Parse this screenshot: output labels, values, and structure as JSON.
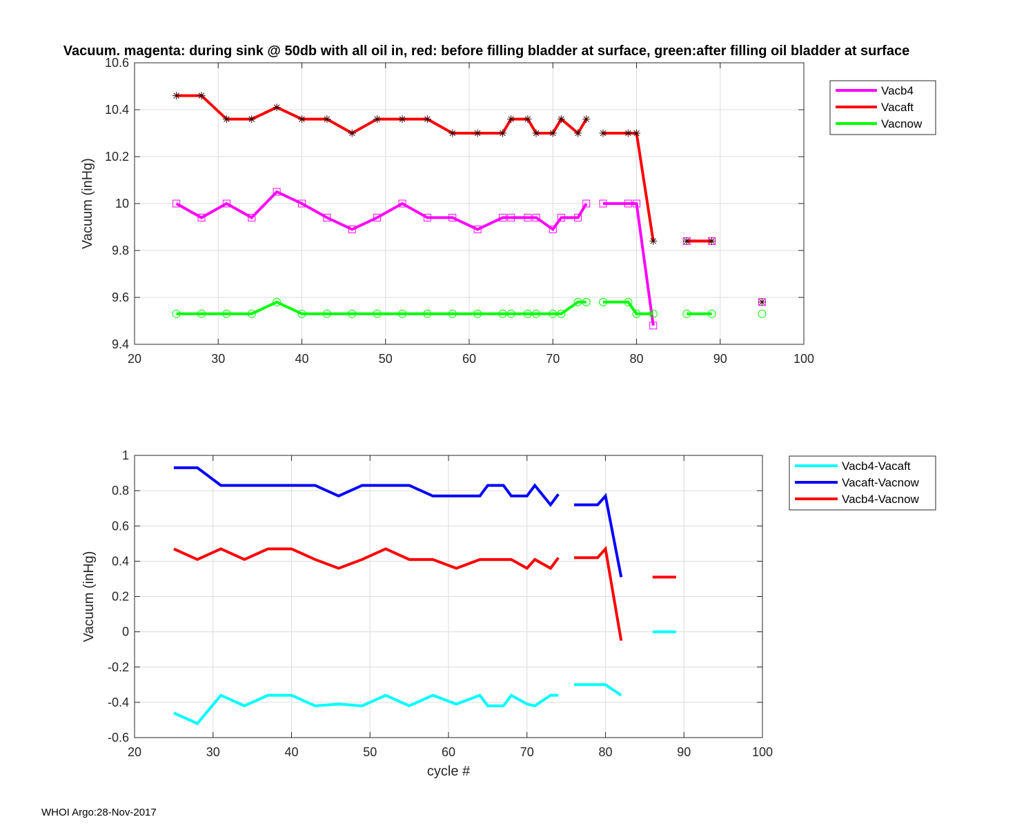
{
  "colors": {
    "magenta": "#ff00ff",
    "red": "#ff0000",
    "green": "#00ff00",
    "cyan": "#00ffff",
    "blue": "#0000ff",
    "grid": "#dcdcdc",
    "axis": "#262626"
  },
  "footer": "WHOI Argo:28-Nov-2017",
  "chart_data": [
    {
      "type": "line",
      "title": "Vacuum. magenta: during sink @ 50db with all oil in, red: before filling bladder at surface, green:after filling oil bladder at surface",
      "xlabel": "",
      "ylabel": "Vacuum (inHg)",
      "xlim": [
        20,
        100
      ],
      "ylim": [
        9.4,
        10.6
      ],
      "xticks": [
        20,
        30,
        40,
        50,
        60,
        70,
        80,
        90,
        100
      ],
      "xtick_labels": [
        "20",
        "30",
        "40",
        "50",
        "60",
        "70",
        "80",
        "90",
        "100"
      ],
      "yticks": [
        9.4,
        9.6,
        9.8,
        10.0,
        10.2,
        10.4,
        10.6
      ],
      "ytick_labels": [
        "9.4",
        "9.6",
        "9.8",
        "10",
        "10.2",
        "10.4",
        "10.6"
      ],
      "grid": true,
      "legend": "top-right outside",
      "series": [
        {
          "name": "Vacb4",
          "color": "#ff00ff",
          "marker": "square",
          "x": [
            25,
            28,
            31,
            34,
            37,
            40,
            43,
            46,
            49,
            52,
            55,
            58,
            61,
            64,
            65,
            67,
            68,
            70,
            71,
            73,
            74,
            null,
            76,
            79,
            80,
            82,
            null,
            86,
            89,
            null,
            95
          ],
          "y": [
            10.0,
            9.94,
            10.0,
            9.94,
            10.05,
            10.0,
            9.94,
            9.89,
            9.94,
            10.0,
            9.94,
            9.94,
            9.89,
            9.94,
            9.94,
            9.94,
            9.94,
            9.89,
            9.94,
            9.94,
            10.0,
            null,
            10.0,
            10.0,
            10.0,
            9.48,
            null,
            9.84,
            9.84,
            null,
            9.58
          ]
        },
        {
          "name": "Vacaft",
          "color": "#ff0000",
          "marker": "asterisk",
          "x": [
            25,
            28,
            31,
            34,
            37,
            40,
            43,
            46,
            49,
            52,
            55,
            58,
            61,
            64,
            65,
            67,
            68,
            70,
            71,
            73,
            74,
            null,
            76,
            79,
            80,
            82,
            null,
            86,
            89,
            null,
            95
          ],
          "y": [
            10.46,
            10.46,
            10.36,
            10.36,
            10.41,
            10.36,
            10.36,
            10.3,
            10.36,
            10.36,
            10.36,
            10.3,
            10.3,
            10.3,
            10.36,
            10.36,
            10.3,
            10.3,
            10.36,
            10.3,
            10.36,
            null,
            10.3,
            10.3,
            10.3,
            9.84,
            null,
            9.84,
            9.84,
            null,
            9.58
          ]
        },
        {
          "name": "Vacnow",
          "color": "#00ff00",
          "marker": "circle",
          "x": [
            25,
            28,
            31,
            34,
            37,
            40,
            43,
            46,
            49,
            52,
            55,
            58,
            61,
            64,
            65,
            67,
            68,
            70,
            71,
            73,
            74,
            null,
            76,
            79,
            80,
            82,
            null,
            86,
            89,
            null,
            95
          ],
          "y": [
            9.53,
            9.53,
            9.53,
            9.53,
            9.58,
            9.53,
            9.53,
            9.53,
            9.53,
            9.53,
            9.53,
            9.53,
            9.53,
            9.53,
            9.53,
            9.53,
            9.53,
            9.53,
            9.53,
            9.58,
            9.58,
            null,
            9.58,
            9.58,
            9.53,
            9.53,
            null,
            9.53,
            9.53,
            null,
            9.53
          ]
        }
      ]
    },
    {
      "type": "line",
      "title": "",
      "xlabel": "cycle #",
      "ylabel": "Vacuum (inHg)",
      "xlim": [
        20,
        100
      ],
      "ylim": [
        -0.6,
        1.0
      ],
      "xticks": [
        20,
        30,
        40,
        50,
        60,
        70,
        80,
        90,
        100
      ],
      "xtick_labels": [
        "20",
        "30",
        "40",
        "50",
        "60",
        "70",
        "80",
        "90",
        "100"
      ],
      "yticks": [
        -0.6,
        -0.4,
        -0.2,
        0,
        0.2,
        0.4,
        0.6,
        0.8,
        1.0
      ],
      "ytick_labels": [
        "-0.6",
        "-0.4",
        "-0.2",
        "0",
        "0.2",
        "0.4",
        "0.6",
        "0.8",
        "1"
      ],
      "grid": true,
      "legend": "top-right outside",
      "series": [
        {
          "name": "Vacb4-Vacaft",
          "color": "#00ffff",
          "x": [
            25,
            28,
            31,
            34,
            37,
            40,
            43,
            46,
            49,
            52,
            55,
            58,
            61,
            64,
            65,
            67,
            68,
            70,
            71,
            73,
            74,
            null,
            76,
            79,
            80,
            82,
            null,
            86,
            89
          ],
          "y": [
            -0.46,
            -0.52,
            -0.36,
            -0.42,
            -0.36,
            -0.36,
            -0.42,
            -0.41,
            -0.42,
            -0.36,
            -0.42,
            -0.36,
            -0.41,
            -0.36,
            -0.42,
            -0.42,
            -0.36,
            -0.41,
            -0.42,
            -0.36,
            -0.36,
            null,
            -0.3,
            -0.3,
            -0.3,
            -0.36,
            null,
            0.0,
            0.0
          ]
        },
        {
          "name": "Vacaft-Vacnow",
          "color": "#0000ff",
          "x": [
            25,
            28,
            31,
            34,
            37,
            40,
            43,
            46,
            49,
            52,
            55,
            58,
            61,
            64,
            65,
            67,
            68,
            70,
            71,
            73,
            74,
            null,
            76,
            79,
            80,
            82
          ],
          "y": [
            0.93,
            0.93,
            0.83,
            0.83,
            0.83,
            0.83,
            0.83,
            0.77,
            0.83,
            0.83,
            0.83,
            0.77,
            0.77,
            0.77,
            0.83,
            0.83,
            0.77,
            0.77,
            0.83,
            0.72,
            0.78,
            null,
            0.72,
            0.72,
            0.77,
            0.31
          ]
        },
        {
          "name": "Vacb4-Vacnow",
          "color": "#ff0000",
          "x": [
            25,
            28,
            31,
            34,
            37,
            40,
            43,
            46,
            49,
            52,
            55,
            58,
            61,
            64,
            65,
            67,
            68,
            70,
            71,
            73,
            74,
            null,
            76,
            79,
            80,
            82,
            null,
            86,
            89
          ],
          "y": [
            0.47,
            0.41,
            0.47,
            0.41,
            0.47,
            0.47,
            0.41,
            0.36,
            0.41,
            0.47,
            0.41,
            0.41,
            0.36,
            0.41,
            0.41,
            0.41,
            0.41,
            0.36,
            0.41,
            0.36,
            0.42,
            null,
            0.42,
            0.42,
            0.47,
            -0.05,
            null,
            0.31,
            0.31
          ]
        }
      ]
    }
  ]
}
